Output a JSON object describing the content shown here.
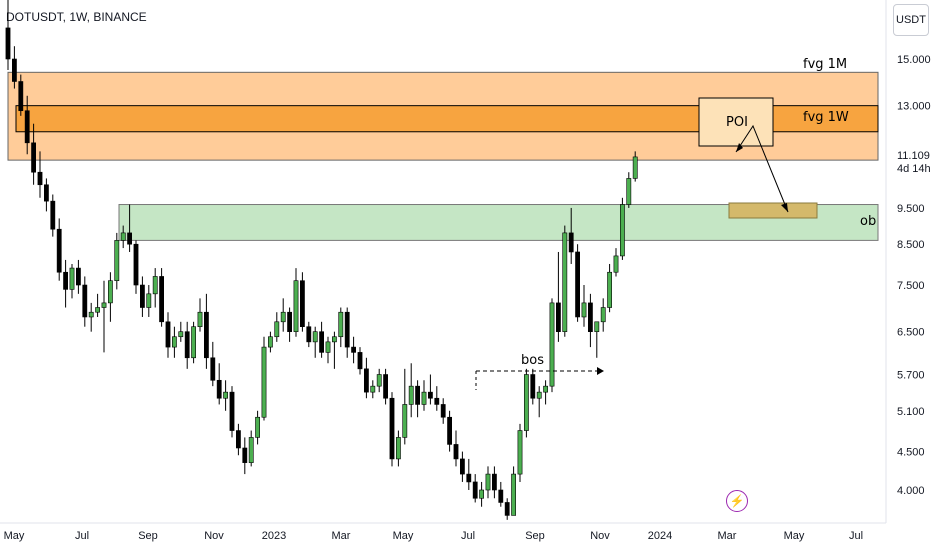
{
  "header": {
    "symbol": "DOTUSDT, 1W, BINANCE"
  },
  "currency": "USDT",
  "last_price": {
    "value": "11.109",
    "countdown": "4d 14h"
  },
  "annotations": {
    "fvg_1m": "fvg 1M",
    "fvg_1w": "fvg 1W",
    "poi": "POI",
    "ob": "ob",
    "bos": "bos"
  },
  "colors": {
    "up": "#4caf50",
    "down": "#000000",
    "fvg_1m": "#ffcc99",
    "fvg_1w": "#f7a440",
    "ob": "#c5e6c5",
    "target": "#d4b96b",
    "poi": "#fde2b8"
  },
  "chart_data": {
    "type": "candlestick",
    "scale": "log",
    "y_ticks": [
      "15.000",
      "13.000",
      "11.109",
      "9.500",
      "8.500",
      "7.500",
      "6.500",
      "5.700",
      "5.100",
      "4.500",
      "4.000"
    ],
    "x_ticks": [
      "May",
      "Jul",
      "Sep",
      "Nov",
      "2023",
      "Mar",
      "May",
      "Jul",
      "Sep",
      "Nov",
      "2024",
      "Mar",
      "May",
      "Jul"
    ],
    "zones": [
      {
        "name": "fvg 1M",
        "low": 11.0,
        "high": 14.4
      },
      {
        "name": "fvg 1W",
        "low": 12.0,
        "high": 13.0
      },
      {
        "name": "ob",
        "low": 8.6,
        "high": 9.6
      }
    ],
    "candles": [
      [
        16.5,
        18.0,
        14.5,
        15.0
      ],
      [
        15.0,
        15.6,
        13.7,
        14.0
      ],
      [
        14.0,
        14.3,
        12.6,
        12.8
      ],
      [
        12.8,
        13.4,
        11.2,
        11.6
      ],
      [
        11.6,
        12.3,
        10.2,
        10.6
      ],
      [
        10.6,
        11.3,
        9.8,
        10.2
      ],
      [
        10.2,
        10.4,
        9.4,
        9.7
      ],
      [
        9.7,
        9.9,
        8.7,
        8.9
      ],
      [
        8.9,
        9.2,
        7.6,
        7.8
      ],
      [
        7.8,
        8.1,
        7.0,
        7.4
      ],
      [
        7.4,
        8.0,
        7.2,
        7.9
      ],
      [
        7.9,
        8.1,
        7.3,
        7.5
      ],
      [
        7.5,
        7.7,
        6.6,
        6.8
      ],
      [
        6.8,
        7.1,
        6.5,
        6.9
      ],
      [
        6.9,
        7.3,
        6.8,
        7.0
      ],
      [
        7.0,
        7.6,
        6.1,
        7.1
      ],
      [
        7.1,
        7.8,
        6.7,
        7.6
      ],
      [
        7.6,
        8.8,
        7.4,
        8.6
      ],
      [
        8.6,
        9.0,
        8.4,
        8.8
      ],
      [
        8.8,
        9.6,
        8.3,
        8.5
      ],
      [
        8.5,
        8.6,
        7.3,
        7.5
      ],
      [
        7.5,
        7.7,
        6.8,
        7.0
      ],
      [
        7.0,
        7.5,
        6.8,
        7.3
      ],
      [
        7.3,
        7.9,
        7.0,
        7.7
      ],
      [
        7.7,
        7.9,
        6.6,
        6.7
      ],
      [
        6.7,
        6.9,
        6.0,
        6.2
      ],
      [
        6.2,
        6.6,
        6.0,
        6.4
      ],
      [
        6.4,
        6.7,
        6.3,
        6.5
      ],
      [
        6.5,
        6.7,
        5.8,
        6.0
      ],
      [
        6.0,
        6.7,
        5.9,
        6.6
      ],
      [
        6.6,
        7.2,
        6.5,
        6.9
      ],
      [
        6.9,
        7.3,
        5.8,
        6.0
      ],
      [
        6.0,
        6.3,
        5.5,
        5.6
      ],
      [
        5.6,
        5.9,
        5.2,
        5.3
      ],
      [
        5.3,
        5.6,
        5.1,
        5.4
      ],
      [
        5.4,
        5.5,
        4.7,
        4.8
      ],
      [
        4.8,
        4.9,
        4.45,
        4.55
      ],
      [
        4.55,
        4.7,
        4.2,
        4.35
      ],
      [
        4.35,
        4.8,
        4.3,
        4.7
      ],
      [
        4.7,
        5.1,
        4.6,
        5.0
      ],
      [
        5.0,
        6.4,
        4.95,
        6.2
      ],
      [
        6.2,
        6.5,
        6.1,
        6.4
      ],
      [
        6.4,
        6.9,
        6.3,
        6.7
      ],
      [
        6.7,
        7.2,
        6.5,
        6.9
      ],
      [
        6.9,
        7.0,
        6.3,
        6.5
      ],
      [
        6.5,
        7.9,
        6.4,
        7.6
      ],
      [
        7.6,
        7.8,
        6.5,
        6.6
      ],
      [
        6.6,
        6.7,
        6.2,
        6.3
      ],
      [
        6.3,
        6.6,
        6.0,
        6.5
      ],
      [
        6.5,
        6.7,
        6.0,
        6.1
      ],
      [
        6.1,
        6.4,
        5.9,
        6.3
      ],
      [
        6.3,
        6.5,
        5.8,
        6.4
      ],
      [
        6.4,
        7.0,
        6.2,
        6.9
      ],
      [
        6.9,
        7.0,
        6.0,
        6.2
      ],
      [
        6.2,
        6.4,
        5.9,
        6.1
      ],
      [
        6.1,
        6.2,
        5.7,
        5.8
      ],
      [
        5.8,
        6.0,
        5.3,
        5.4
      ],
      [
        5.4,
        5.6,
        5.3,
        5.5
      ],
      [
        5.5,
        5.8,
        5.4,
        5.7
      ],
      [
        5.7,
        5.8,
        5.2,
        5.3
      ],
      [
        5.3,
        5.4,
        4.3,
        4.4
      ],
      [
        4.4,
        4.8,
        4.3,
        4.7
      ],
      [
        4.7,
        5.8,
        4.6,
        5.2
      ],
      [
        5.2,
        5.9,
        5.0,
        5.5
      ],
      [
        5.5,
        5.6,
        5.0,
        5.2
      ],
      [
        5.2,
        5.6,
        5.1,
        5.4
      ],
      [
        5.4,
        5.7,
        5.2,
        5.3
      ],
      [
        5.3,
        5.5,
        5.1,
        5.2
      ],
      [
        5.2,
        5.3,
        4.9,
        5.0
      ],
      [
        5.0,
        5.1,
        4.5,
        4.6
      ],
      [
        4.6,
        4.8,
        4.3,
        4.4
      ],
      [
        4.4,
        4.5,
        4.1,
        4.2
      ],
      [
        4.2,
        4.4,
        4.0,
        4.1
      ],
      [
        4.1,
        4.2,
        3.85,
        3.9
      ],
      [
        3.9,
        4.1,
        3.8,
        4.0
      ],
      [
        4.0,
        4.3,
        3.9,
        4.2
      ],
      [
        4.2,
        4.3,
        3.9,
        4.0
      ],
      [
        4.0,
        4.1,
        3.8,
        3.85
      ],
      [
        3.85,
        3.9,
        3.65,
        3.7
      ],
      [
        3.7,
        4.3,
        3.75,
        4.2
      ],
      [
        4.2,
        4.9,
        4.1,
        4.8
      ],
      [
        4.8,
        5.8,
        4.7,
        5.7
      ],
      [
        5.7,
        5.8,
        5.2,
        5.3
      ],
      [
        5.3,
        5.5,
        5.0,
        5.4
      ],
      [
        5.4,
        5.6,
        5.2,
        5.5
      ],
      [
        5.5,
        7.2,
        5.4,
        7.1
      ],
      [
        7.1,
        8.3,
        6.3,
        6.5
      ],
      [
        6.5,
        9.0,
        6.4,
        8.8
      ],
      [
        8.8,
        9.5,
        8.0,
        8.3
      ],
      [
        8.3,
        8.5,
        6.7,
        6.8
      ],
      [
        6.8,
        7.5,
        6.6,
        7.1
      ],
      [
        7.1,
        7.3,
        6.2,
        6.5
      ],
      [
        6.5,
        6.7,
        6.0,
        6.7
      ],
      [
        6.7,
        7.2,
        6.5,
        7.0
      ],
      [
        7.0,
        8.0,
        6.9,
        7.8
      ],
      [
        7.8,
        8.4,
        7.7,
        8.2
      ],
      [
        8.2,
        9.8,
        8.1,
        9.6
      ],
      [
        9.6,
        10.6,
        9.5,
        10.4
      ],
      [
        10.4,
        11.3,
        10.3,
        11.109
      ]
    ]
  }
}
